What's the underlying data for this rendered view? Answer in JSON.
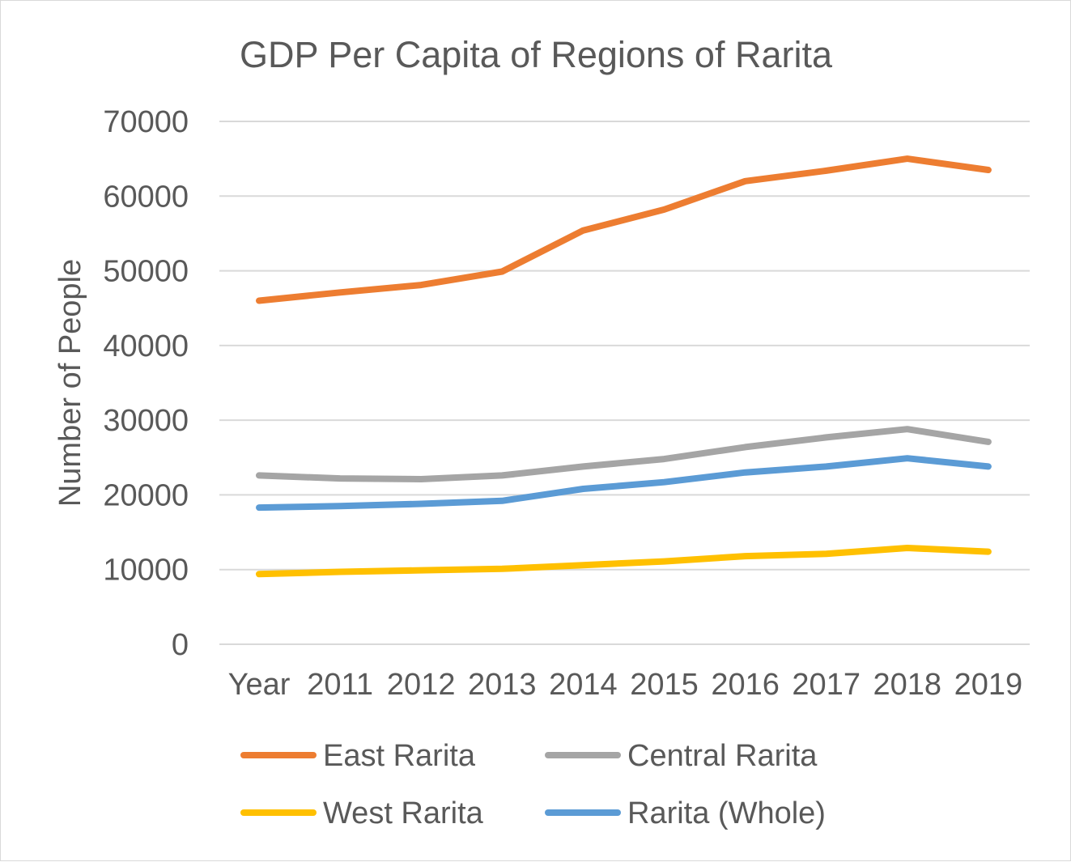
{
  "chart_data": {
    "type": "line",
    "title": "GDP Per Capita of Regions of Rarita",
    "xlabel": "",
    "ylabel": "Number of People",
    "categories": [
      "Year",
      "2011",
      "2012",
      "2013",
      "2014",
      "2015",
      "2016",
      "2017",
      "2018",
      "2019"
    ],
    "ylim": [
      0,
      70000
    ],
    "yticks": [
      0,
      10000,
      20000,
      30000,
      40000,
      50000,
      60000,
      70000
    ],
    "grid": true,
    "legend_position": "bottom",
    "series": [
      {
        "name": "East Rarita",
        "color": "#ED7D31",
        "values": [
          46000,
          47100,
          48100,
          49900,
          55400,
          58200,
          62000,
          63400,
          65000,
          63500
        ]
      },
      {
        "name": "Central Rarita",
        "color": "#A5A5A5",
        "values": [
          22600,
          22200,
          22100,
          22600,
          23800,
          24800,
          26400,
          27700,
          28800,
          27100
        ]
      },
      {
        "name": "West Rarita",
        "color": "#FFC000",
        "values": [
          9400,
          9700,
          9900,
          10100,
          10600,
          11100,
          11800,
          12100,
          12900,
          12400
        ]
      },
      {
        "name": "Rarita (Whole)",
        "color": "#5B9BD5",
        "values": [
          18300,
          18500,
          18800,
          19200,
          20800,
          21700,
          23000,
          23800,
          24900,
          23800
        ]
      }
    ]
  }
}
